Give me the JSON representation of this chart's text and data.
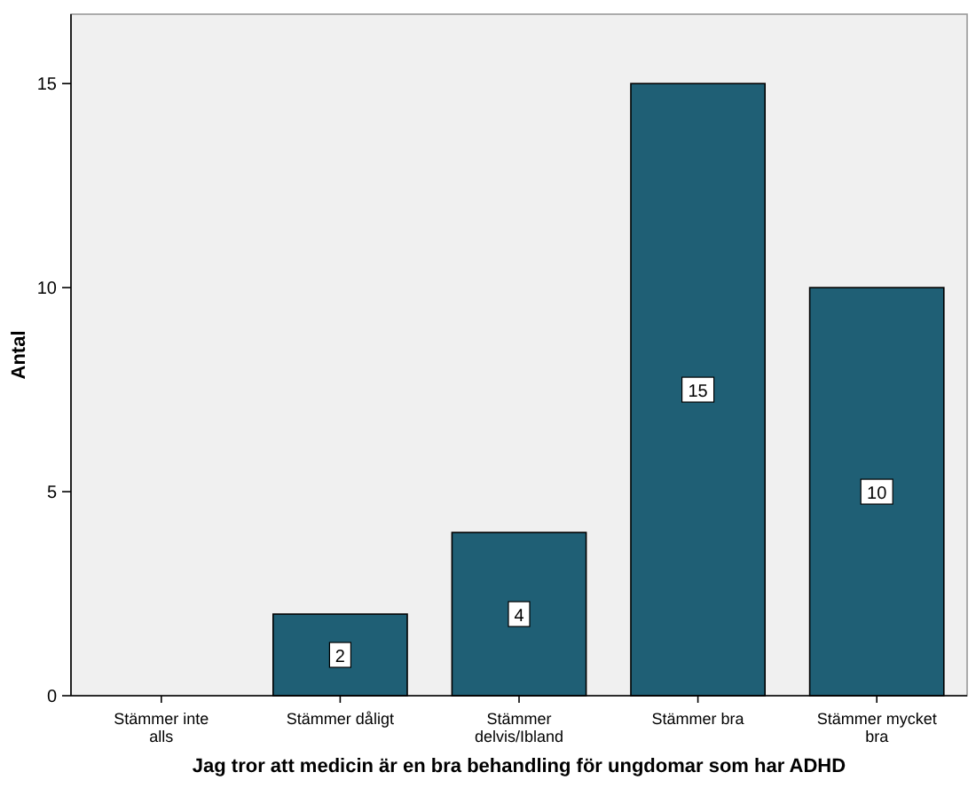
{
  "chart_data": {
    "type": "bar",
    "xlabel": "Jag tror att medicin är en bra behandling för ungdomar som har ADHD",
    "ylabel": "Antal",
    "categories": [
      "Stämmer inte alls",
      "Stämmer dåligt",
      "Stämmer delvis/Ibland",
      "Stämmer bra",
      "Stämmer mycket bra"
    ],
    "values": [
      0,
      2,
      4,
      15,
      10
    ],
    "value_labels": [
      null,
      "2",
      "4",
      "15",
      "10"
    ],
    "color": "#1f5f75",
    "ylim": [
      0,
      16.7
    ],
    "yticks": [
      0,
      5,
      10,
      15
    ],
    "grid": false
  }
}
